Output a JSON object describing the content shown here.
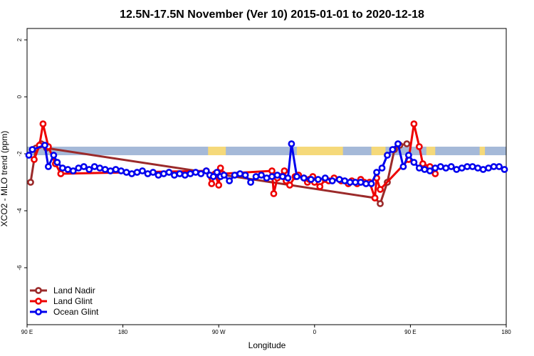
{
  "chart_data": {
    "type": "line",
    "title": "12.5N-17.5N November (Ver 10)   2015-01-01 to 2020-12-18",
    "xlabel": "Longitude",
    "ylabel": "XCO2 - MLO trend (ppm)",
    "xlim": [
      -90,
      180
    ],
    "ylim": [
      -8,
      2.4
    ],
    "x_ticks": [
      {
        "value": -90,
        "label": "90 E"
      },
      {
        "value": -36,
        "label": "180"
      },
      {
        "value": 18,
        "label": "90 W"
      },
      {
        "value": 72,
        "label": "0"
      },
      {
        "value": 126,
        "label": "90 E"
      },
      {
        "value": 180,
        "label": "180"
      }
    ],
    "y_ticks": [
      {
        "value": 2,
        "label": "2"
      },
      {
        "value": 0,
        "label": "0"
      },
      {
        "value": -2,
        "label": "-2"
      },
      {
        "value": -4,
        "label": "-4"
      },
      {
        "value": -6,
        "label": "-6"
      }
    ],
    "legend_position": "bottom-left",
    "background_band": {
      "y_range": [
        -2.05,
        -1.75
      ],
      "base_color": "#a5b9d8",
      "highlight_color": "#f5d97a",
      "highlight_segments": [
        [
          12,
          22
        ],
        [
          62,
          88
        ],
        [
          104,
          112
        ],
        [
          135,
          140
        ],
        [
          165,
          168
        ]
      ]
    },
    "series": [
      {
        "name": "Land Nadir",
        "color": "#9b2a2a",
        "x": [
          -88,
          -85,
          -82,
          -79,
          106,
          109,
          113,
          117,
          120,
          124
        ],
        "y": [
          -3.0,
          -1.8,
          -1.65,
          -1.8,
          -3.55,
          -3.75,
          -3.0,
          -1.85,
          -1.7,
          -1.65
        ]
      },
      {
        "name": "Land Glint",
        "color": "#ee0000",
        "x": [
          -86,
          -83,
          -81,
          -78,
          -74,
          -71,
          11,
          14,
          16,
          18,
          19,
          20,
          48,
          49,
          51,
          55,
          56,
          58,
          61,
          63,
          66,
          68,
          69,
          71,
          72,
          75,
          78,
          80,
          83,
          87,
          91,
          93,
          96,
          98,
          100,
          103,
          106,
          107,
          109,
          125,
          128,
          131,
          133,
          137,
          140
        ],
        "y": [
          -2.2,
          -1.7,
          -0.95,
          -1.75,
          -2.35,
          -2.7,
          -2.6,
          -3.05,
          -2.7,
          -3.1,
          -2.5,
          -2.7,
          -2.6,
          -3.4,
          -2.85,
          -2.6,
          -2.95,
          -3.1,
          -2.8,
          -2.75,
          -2.85,
          -3.0,
          -2.9,
          -2.8,
          -3.0,
          -3.15,
          -2.9,
          -2.95,
          -2.85,
          -2.95,
          -3.05,
          -2.95,
          -3.05,
          -2.9,
          -3.0,
          -3.0,
          -3.55,
          -2.85,
          -3.25,
          -2.2,
          -0.95,
          -1.75,
          -2.35,
          -2.45,
          -2.7
        ]
      },
      {
        "name": "Ocean Glint",
        "color": "#0000ee",
        "x": [
          -89,
          -87,
          -80,
          -78,
          -75,
          -73,
          -70,
          -67,
          -64,
          -61,
          -58,
          -55,
          -52,
          -49,
          -46,
          -43,
          -40,
          -37,
          -34,
          -31,
          -28,
          -25,
          -22,
          -19,
          -16,
          -13,
          -10,
          -7,
          -4,
          -1,
          2,
          5,
          8,
          11,
          13,
          15,
          17,
          19,
          21,
          24,
          27,
          30,
          33,
          36,
          39,
          42,
          45,
          48,
          51,
          54,
          57,
          59,
          62,
          66,
          70,
          74,
          78,
          82,
          86,
          89,
          92,
          95,
          98,
          101,
          104,
          107,
          110,
          113,
          116,
          119,
          122,
          125,
          128,
          131,
          134,
          137,
          140,
          143,
          146,
          149,
          152,
          155,
          158,
          161,
          164,
          167,
          170,
          173,
          176,
          179
        ],
        "y": [
          -2.05,
          -1.85,
          -1.7,
          -2.45,
          -2.05,
          -2.3,
          -2.5,
          -2.55,
          -2.6,
          -2.5,
          -2.45,
          -2.55,
          -2.45,
          -2.5,
          -2.55,
          -2.6,
          -2.55,
          -2.6,
          -2.65,
          -2.7,
          -2.65,
          -2.6,
          -2.7,
          -2.65,
          -2.75,
          -2.7,
          -2.65,
          -2.75,
          -2.7,
          -2.75,
          -2.7,
          -2.65,
          -2.7,
          -2.6,
          -2.75,
          -2.8,
          -2.65,
          -2.8,
          -2.75,
          -2.95,
          -2.75,
          -2.7,
          -2.75,
          -3.0,
          -2.8,
          -2.75,
          -2.85,
          -2.8,
          -2.75,
          -2.8,
          -2.85,
          -1.65,
          -2.8,
          -2.85,
          -2.9,
          -2.9,
          -2.85,
          -2.95,
          -2.9,
          -2.95,
          -3.0,
          -3.0,
          -3.0,
          -3.05,
          -3.05,
          -2.65,
          -2.5,
          -2.05,
          -1.85,
          -1.65,
          -2.45,
          -2.05,
          -2.3,
          -2.5,
          -2.55,
          -2.6,
          -2.5,
          -2.45,
          -2.5,
          -2.45,
          -2.55,
          -2.5,
          -2.45,
          -2.45,
          -2.5,
          -2.55,
          -2.5,
          -2.45,
          -2.45,
          -2.55
        ]
      }
    ]
  }
}
